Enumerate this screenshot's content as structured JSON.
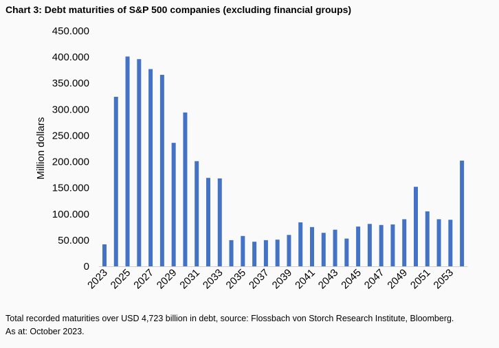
{
  "chart_data": {
    "type": "bar",
    "title": "Chart 3: Debt maturities of S&P 500 companies (excluding financial groups)",
    "xlabel": "",
    "ylabel": "Million dollars",
    "ylim": [
      0,
      450000
    ],
    "yticks": [
      0,
      50000,
      100000,
      150000,
      200000,
      250000,
      300000,
      350000,
      400000,
      450000
    ],
    "ytick_labels": [
      "0",
      "50.000",
      "100.000",
      "150.000",
      "200.000",
      "250.000",
      "300.000",
      "350.000",
      "400.000",
      "450.000"
    ],
    "grid": false,
    "legend": "none",
    "color": "#4472C4",
    "categories": [
      "2023",
      "2024",
      "2025",
      "2026",
      "2027",
      "2028",
      "2029",
      "2030",
      "2031",
      "2032",
      "2033",
      "2034",
      "2035",
      "2036",
      "2037",
      "2038",
      "2039",
      "2040",
      "2041",
      "2042",
      "2043",
      "2044",
      "2045",
      "2046",
      "2047",
      "2048",
      "2049",
      "2050",
      "2051",
      "2052",
      "2053",
      "2054"
    ],
    "xtick_labels_shown": [
      "2023",
      "2025",
      "2027",
      "2029",
      "2031",
      "2033",
      "2035",
      "2037",
      "2039",
      "2041",
      "2043",
      "2045",
      "2047",
      "2049",
      "2051",
      "2053"
    ],
    "values": [
      42000,
      324000,
      401000,
      396000,
      377000,
      366000,
      236000,
      294000,
      201000,
      169000,
      168000,
      50000,
      58000,
      47000,
      50000,
      51000,
      60000,
      84000,
      75000,
      64000,
      70000,
      53000,
      76000,
      81000,
      79000,
      80000,
      90000,
      152000,
      105000,
      90000,
      89000,
      202000
    ]
  },
  "footnote": {
    "line1": "Total recorded maturities over USD 4,723 billion in debt, source: Flossbach von Storch Research Institute, Bloomberg.",
    "line2": "As at: October 2023."
  }
}
